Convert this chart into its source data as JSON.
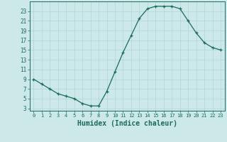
{
  "x": [
    0,
    1,
    2,
    3,
    4,
    5,
    6,
    7,
    8,
    9,
    10,
    11,
    12,
    13,
    14,
    15,
    16,
    17,
    18,
    19,
    20,
    21,
    22,
    23
  ],
  "y": [
    9,
    8,
    7,
    6,
    5.5,
    5,
    4,
    3.5,
    3.5,
    6.5,
    10.5,
    14.5,
    18,
    21.5,
    23.5,
    24,
    24,
    24,
    23.5,
    21,
    18.5,
    16.5,
    15.5,
    15
  ],
  "line_color": "#1a6b5a",
  "bg_color": "#cce8e8",
  "grid_color": "#b0d4d4",
  "xlabel": "Humidex (Indice chaleur)",
  "xlabel_fontsize": 7,
  "ytick_labels": [
    "3",
    "5",
    "7",
    "9",
    "11",
    "13",
    "15",
    "17",
    "19",
    "21",
    "23"
  ],
  "ytick_values": [
    3,
    5,
    7,
    9,
    11,
    13,
    15,
    17,
    19,
    21,
    23
  ],
  "ylim": [
    2.5,
    25.0
  ],
  "xlim": [
    -0.5,
    23.5
  ],
  "xtick_values": [
    0,
    1,
    2,
    3,
    4,
    5,
    6,
    7,
    8,
    9,
    10,
    11,
    12,
    13,
    14,
    15,
    16,
    17,
    18,
    19,
    20,
    21,
    22,
    23
  ]
}
